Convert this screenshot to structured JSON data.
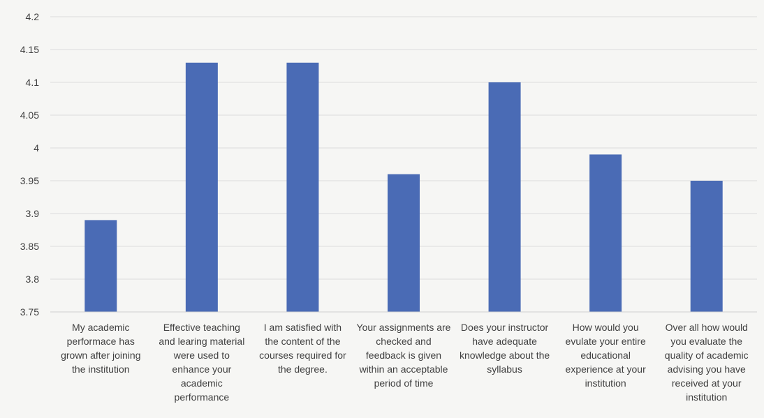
{
  "chart_data": {
    "type": "bar",
    "title": "",
    "xlabel": "",
    "ylabel": "",
    "ylim": [
      3.75,
      4.2
    ],
    "y_ticks": [
      "3.75",
      "3.8",
      "3.85",
      "3.9",
      "3.95",
      "4",
      "4.05",
      "4.1",
      "4.15",
      "4.2"
    ],
    "grid": true,
    "legend": "none",
    "bar_color": "#4a6bb5",
    "categories": [
      "My academic\nperformace has\ngrown after joining\nthe institution",
      "Effective teaching\nand learing material\nwere used to\nenhance your\nacademic\nperformance",
      "I am satisfied with\nthe content of the\ncourses required for\nthe degree.",
      "Your assignments are\nchecked and\nfeedback is given\nwithin an acceptable\nperiod of time",
      "Does your instructor\nhave adequate\nknowledge about the\nsyllabus",
      "How would you\nevulate your entire\neducational\nexperience at your\ninstitution",
      "Over all how would\nyou evaluate the\nquality of academic\nadvising you have\nreceived at your\ninstitution"
    ],
    "values": [
      3.89,
      4.13,
      4.13,
      3.96,
      4.1,
      3.99,
      3.95
    ]
  }
}
